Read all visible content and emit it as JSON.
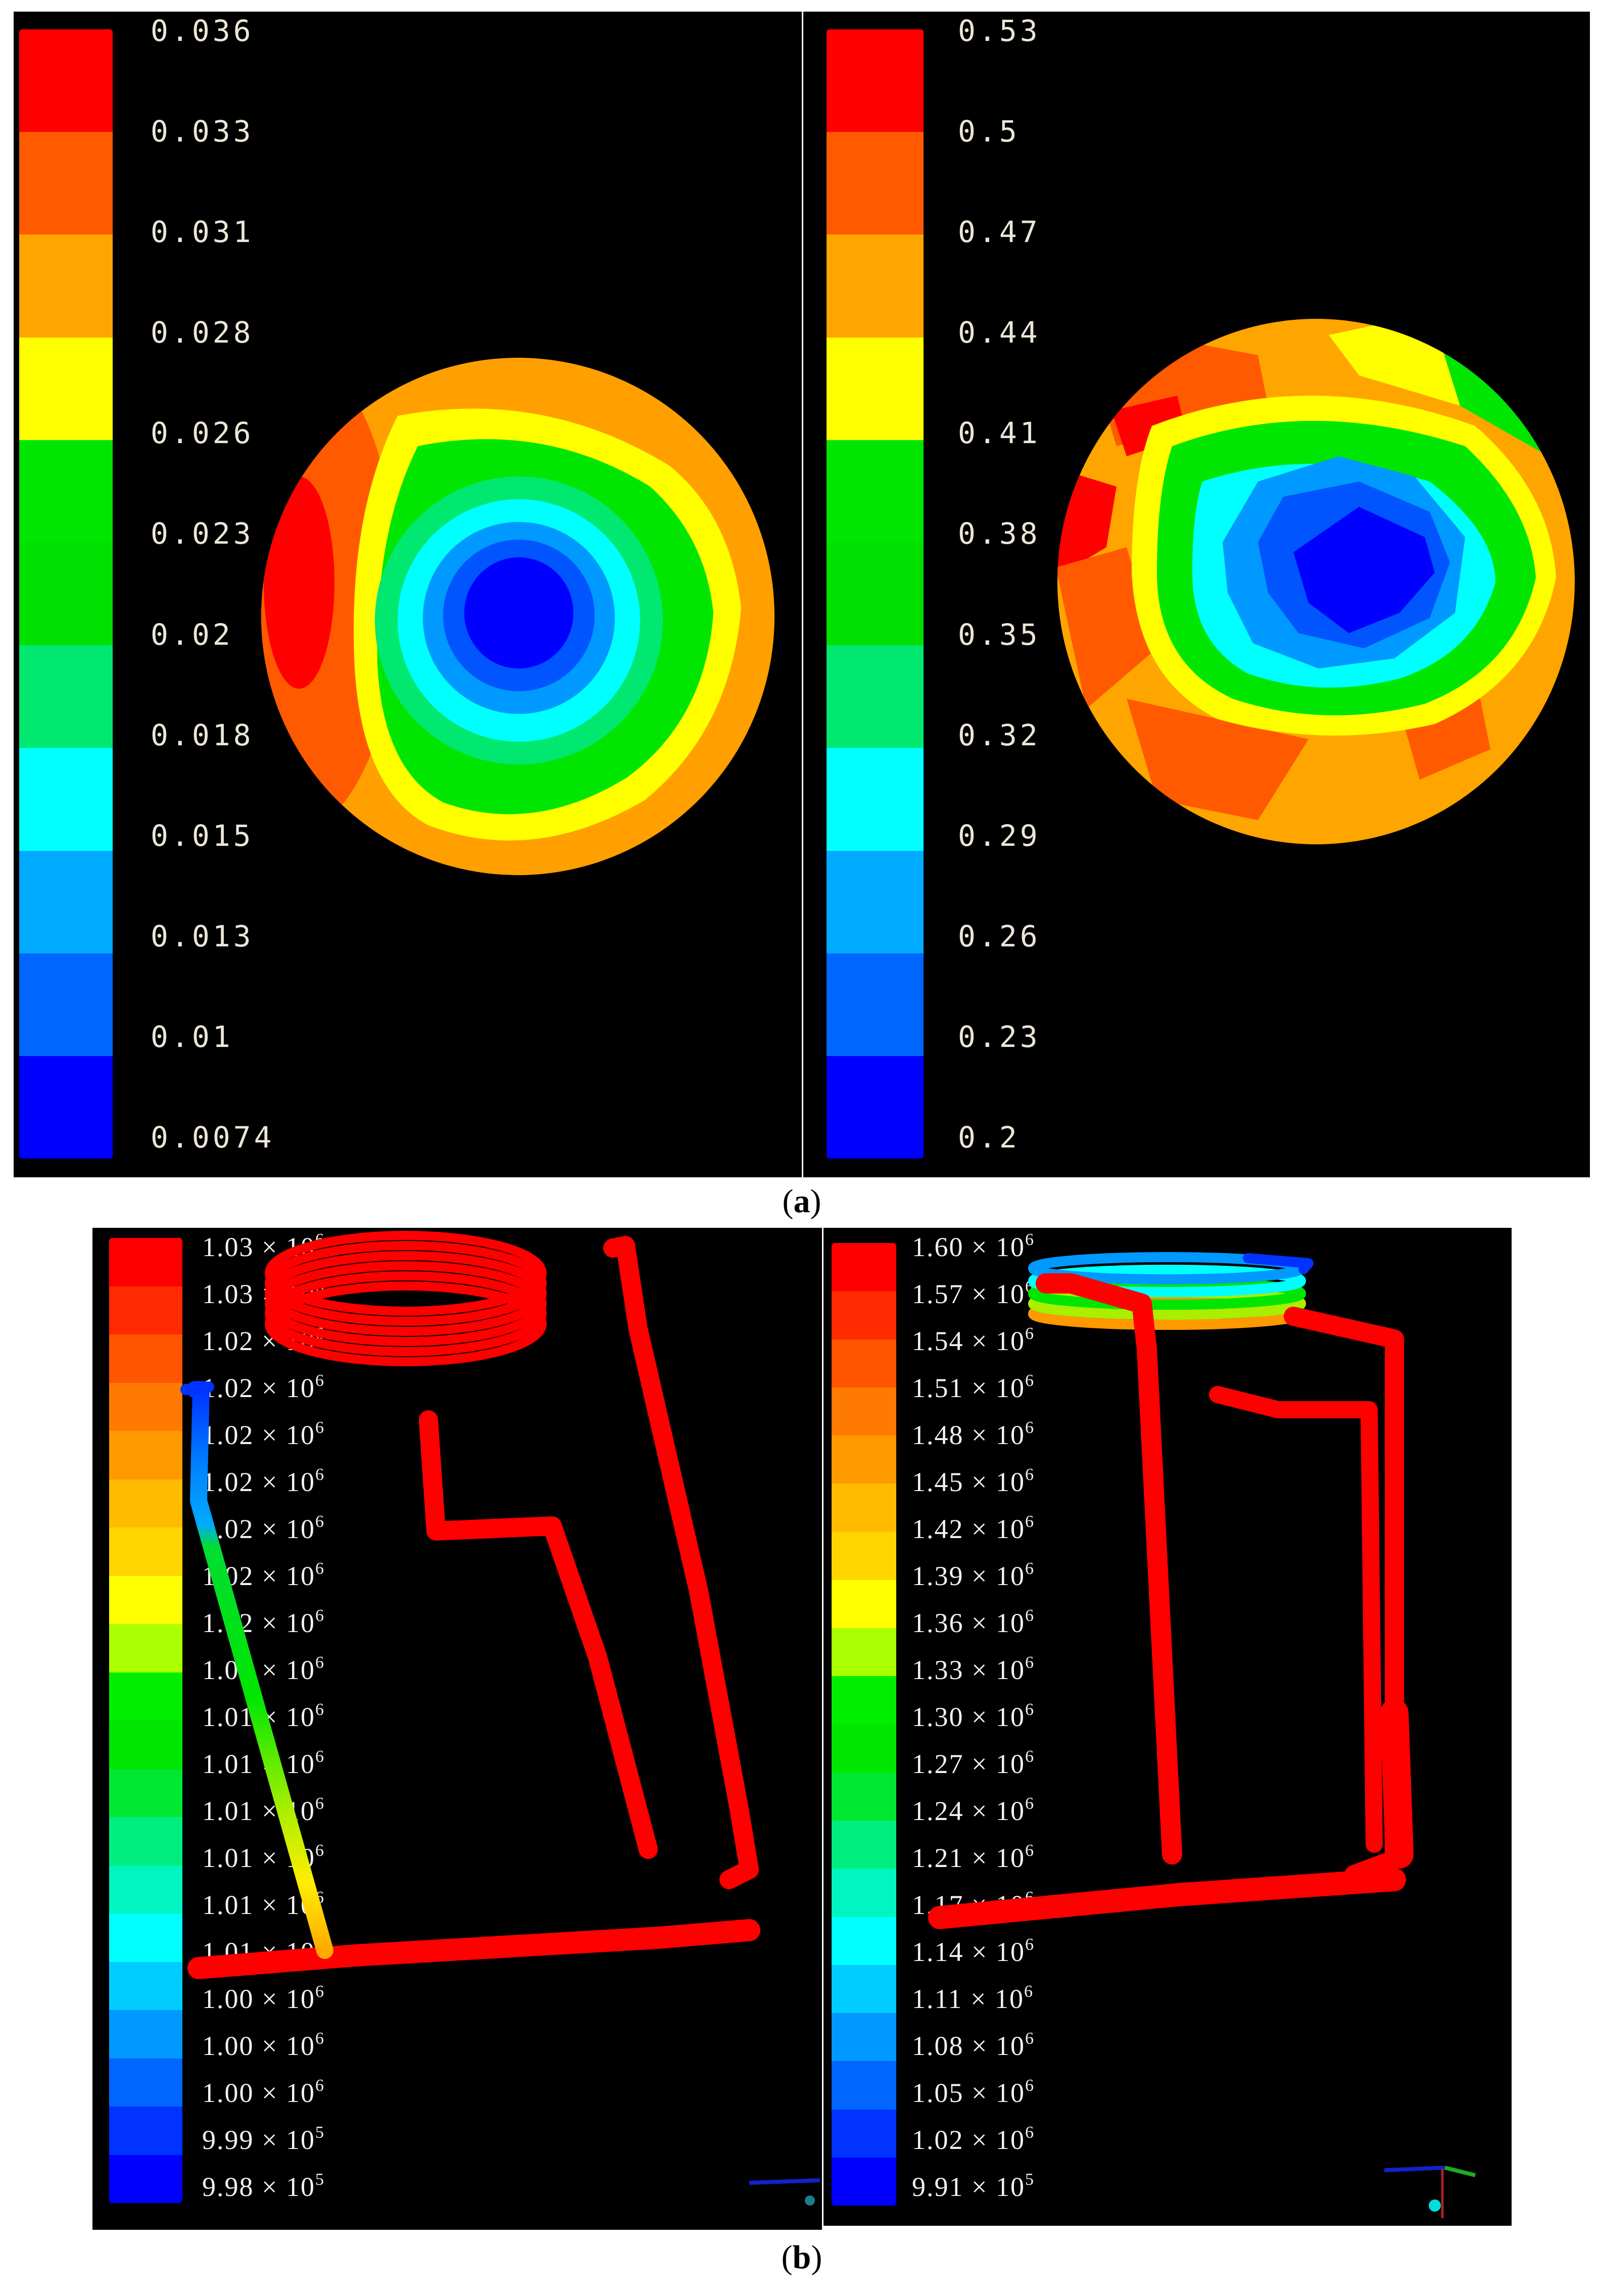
{
  "figure": {
    "caption_a": "a",
    "caption_b": "b"
  },
  "colors": {
    "background": "#000000",
    "page": "#ffffff",
    "bands_11": [
      "#ff0000",
      "#ff5a00",
      "#ffa500",
      "#ffff00",
      "#00e600",
      "#00e060",
      "#00ffff",
      "#00aaff",
      "#0066ff",
      "#0000ff"
    ],
    "bands_20": [
      "#ff0000",
      "#ff2a00",
      "#ff5500",
      "#ff7a00",
      "#ff9900",
      "#ffbb00",
      "#ffd500",
      "#ffff00",
      "#aaff00",
      "#00ee00",
      "#00e600",
      "#00e830",
      "#00ee80",
      "#00f5c0",
      "#00ffff",
      "#00ccff",
      "#0099ff",
      "#0066ff",
      "#0033ff",
      "#0000ff"
    ]
  },
  "chart_data": [
    {
      "type": "heatmap",
      "panel": "a-left",
      "title": "",
      "description": "Circular cross-section contour map, low values at center, high at rim",
      "colorbar": {
        "ticks": [
          "0.036",
          "0.033",
          "0.031",
          "0.028",
          "0.026",
          "0.023",
          "0.02",
          "0.018",
          "0.015",
          "0.013",
          "0.01",
          "0.0074"
        ],
        "min": 0.0074,
        "max": 0.036
      }
    },
    {
      "type": "heatmap",
      "panel": "a-right",
      "title": "",
      "description": "Circular cross-section contour map, low values at center, high at rim",
      "colorbar": {
        "ticks": [
          "0.53",
          "0.5",
          "0.47",
          "0.44",
          "0.41",
          "0.38",
          "0.35",
          "0.32",
          "0.29",
          "0.26",
          "0.23",
          "0.2"
        ],
        "min": 0.2,
        "max": 0.53
      }
    },
    {
      "type": "heatmap",
      "panel": "b-left",
      "title": "",
      "description": "3D pipe network with helical coil; coil and main pipes red (max), inlet pipe gradient blue to yellow",
      "colorbar": {
        "ticks": [
          {
            "m": "1.03",
            "e": "6"
          },
          {
            "m": "1.03",
            "e": "6"
          },
          {
            "m": "1.02",
            "e": "6"
          },
          {
            "m": "1.02",
            "e": "6"
          },
          {
            "m": "1.02",
            "e": "6"
          },
          {
            "m": "1.02",
            "e": "6"
          },
          {
            "m": "1.02",
            "e": "6"
          },
          {
            "m": "1.02",
            "e": "6"
          },
          {
            "m": "1.02",
            "e": "6"
          },
          {
            "m": "1.01",
            "e": "6"
          },
          {
            "m": "1.01",
            "e": "6"
          },
          {
            "m": "1.01",
            "e": "6"
          },
          {
            "m": "1.01",
            "e": "6"
          },
          {
            "m": "1.01",
            "e": "6"
          },
          {
            "m": "1.01",
            "e": "6"
          },
          {
            "m": "1.01",
            "e": "6"
          },
          {
            "m": "1.00",
            "e": "6"
          },
          {
            "m": "1.00",
            "e": "6"
          },
          {
            "m": "1.00",
            "e": "6"
          },
          {
            "m": "9.99",
            "e": "5"
          },
          {
            "m": "9.98",
            "e": "5"
          }
        ],
        "min": 998000,
        "max": 1030000
      }
    },
    {
      "type": "heatmap",
      "panel": "b-right",
      "title": "",
      "description": "3D pipe network with helical coil; coil gradient orange to blue upward, pipes red",
      "colorbar": {
        "ticks": [
          {
            "m": "1.60",
            "e": "6"
          },
          {
            "m": "1.57",
            "e": "6"
          },
          {
            "m": "1.54",
            "e": "6"
          },
          {
            "m": "1.51",
            "e": "6"
          },
          {
            "m": "1.48",
            "e": "6"
          },
          {
            "m": "1.45",
            "e": "6"
          },
          {
            "m": "1.42",
            "e": "6"
          },
          {
            "m": "1.39",
            "e": "6"
          },
          {
            "m": "1.36",
            "e": "6"
          },
          {
            "m": "1.33",
            "e": "6"
          },
          {
            "m": "1.30",
            "e": "6"
          },
          {
            "m": "1.27",
            "e": "6"
          },
          {
            "m": "1.24",
            "e": "6"
          },
          {
            "m": "1.21",
            "e": "6"
          },
          {
            "m": "1.17",
            "e": "6"
          },
          {
            "m": "1.14",
            "e": "6"
          },
          {
            "m": "1.11",
            "e": "6"
          },
          {
            "m": "1.08",
            "e": "6"
          },
          {
            "m": "1.05",
            "e": "6"
          },
          {
            "m": "1.02",
            "e": "6"
          },
          {
            "m": "9.91",
            "e": "5"
          }
        ],
        "min": 991000,
        "max": 1600000
      }
    }
  ]
}
